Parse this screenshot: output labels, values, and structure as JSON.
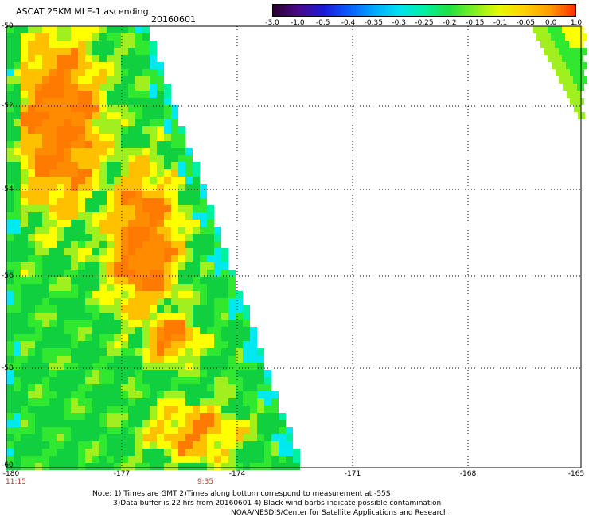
{
  "header": {
    "title": "ASCAT 25KM MLE-1 ascending",
    "date": "20160601"
  },
  "colorbar": {
    "labels": [
      "-3.0",
      "-1.0",
      "-0.5",
      "-0.4",
      "-0.35",
      "-0.3",
      "-0.25",
      "-0.2",
      "-0.15",
      "-0.1",
      "-0.05",
      "0.0",
      "1.0"
    ],
    "colors": [
      "#2a0030",
      "#4a0a8a",
      "#1a1ad8",
      "#0a5cff",
      "#00a8ff",
      "#00e0f0",
      "#00f0a0",
      "#20e040",
      "#80f020",
      "#e8f800",
      "#ffd000",
      "#ff9a00",
      "#ff3000"
    ]
  },
  "axes": {
    "lat_labels": [
      "-50",
      "-52",
      "-54",
      "-56",
      "-58",
      "-60"
    ],
    "lon_labels": [
      "-180",
      "-177",
      "-174",
      "-171",
      "-168",
      "-165"
    ],
    "time_labels": [
      "11:15",
      "9:35"
    ]
  },
  "notes": {
    "line1": "Note: 1) Times are GMT 2)Times along bottom correspond to measurement at -55S",
    "line2": "3)Data buffer is 22 hrs from 20160601 4) Black wind barbs indicate possible contamination",
    "line3": "NOAA/NESDIS/Center for Satellite Applications and Research"
  }
}
